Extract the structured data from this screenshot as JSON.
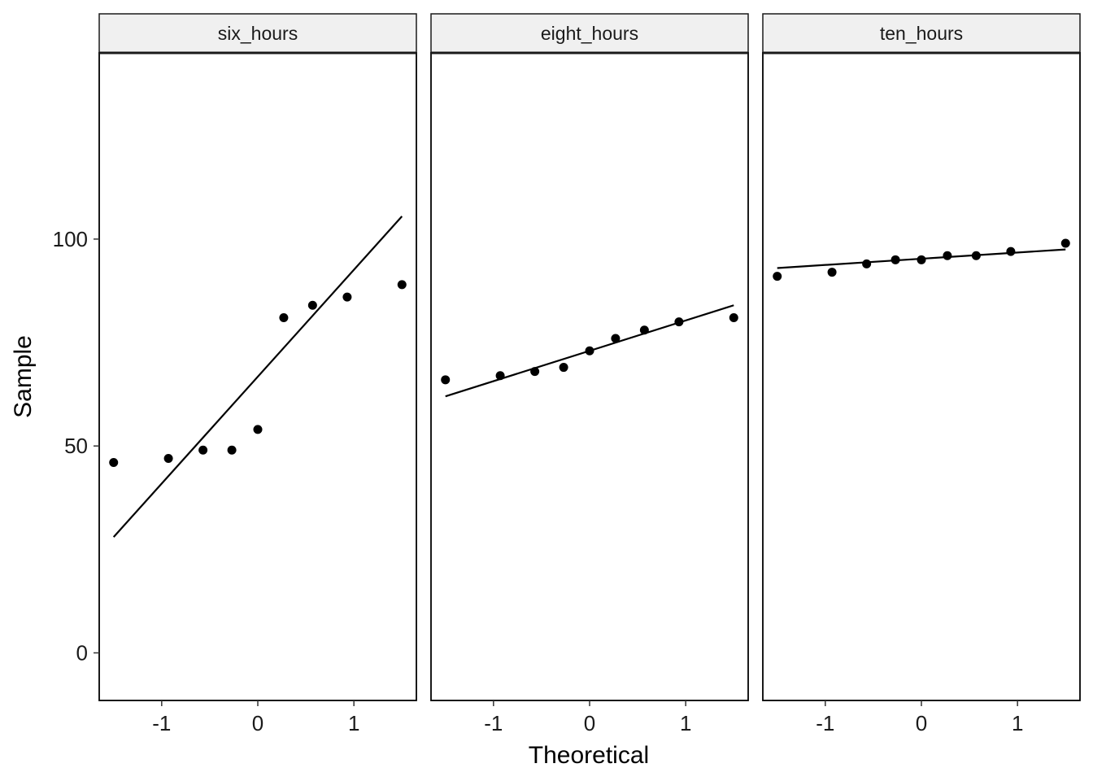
{
  "chart_data": {
    "type": "scatter",
    "subtype": "qq-plot faceted",
    "xlabel": "Theoretical",
    "ylabel": "Sample",
    "xlim": [
      -1.65,
      1.65
    ],
    "ylim": [
      -11.5,
      145
    ],
    "x_ticks": [
      -1,
      0,
      1
    ],
    "x_tick_labels": [
      "-1",
      "0",
      "1"
    ],
    "y_ticks": [
      0,
      50,
      100
    ],
    "y_tick_labels": [
      "0",
      "50",
      "100"
    ],
    "grid": false,
    "colors": {
      "points": "#000000",
      "line": "#000000",
      "strip_bg": "#f0f0f0",
      "panel_border": "#000000"
    },
    "facets": [
      {
        "name": "six_hours",
        "points": [
          {
            "x": -1.5,
            "y": 46
          },
          {
            "x": -0.93,
            "y": 47
          },
          {
            "x": -0.57,
            "y": 49
          },
          {
            "x": -0.27,
            "y": 49
          },
          {
            "x": 0.0,
            "y": 54
          },
          {
            "x": 0.27,
            "y": 81
          },
          {
            "x": 0.57,
            "y": 84
          },
          {
            "x": 0.93,
            "y": 86
          },
          {
            "x": 1.5,
            "y": 89
          }
        ],
        "line": {
          "x": [
            -1.5,
            1.5
          ],
          "y": [
            28,
            105.5
          ]
        }
      },
      {
        "name": "eight_hours",
        "points": [
          {
            "x": -1.5,
            "y": 66
          },
          {
            "x": -0.93,
            "y": 67
          },
          {
            "x": -0.57,
            "y": 68
          },
          {
            "x": -0.27,
            "y": 69
          },
          {
            "x": 0.0,
            "y": 73
          },
          {
            "x": 0.27,
            "y": 76
          },
          {
            "x": 0.57,
            "y": 78
          },
          {
            "x": 0.93,
            "y": 80
          },
          {
            "x": 1.5,
            "y": 81
          }
        ],
        "line": {
          "x": [
            -1.5,
            1.5
          ],
          "y": [
            62,
            84
          ]
        }
      },
      {
        "name": "ten_hours",
        "points": [
          {
            "x": -1.5,
            "y": 91
          },
          {
            "x": -0.93,
            "y": 92
          },
          {
            "x": -0.57,
            "y": 94
          },
          {
            "x": -0.27,
            "y": 95
          },
          {
            "x": 0.0,
            "y": 95
          },
          {
            "x": 0.27,
            "y": 96
          },
          {
            "x": 0.57,
            "y": 96
          },
          {
            "x": 0.93,
            "y": 97
          },
          {
            "x": 1.5,
            "y": 99
          }
        ],
        "line": {
          "x": [
            -1.5,
            1.5
          ],
          "y": [
            93,
            97.5
          ]
        }
      }
    ]
  }
}
